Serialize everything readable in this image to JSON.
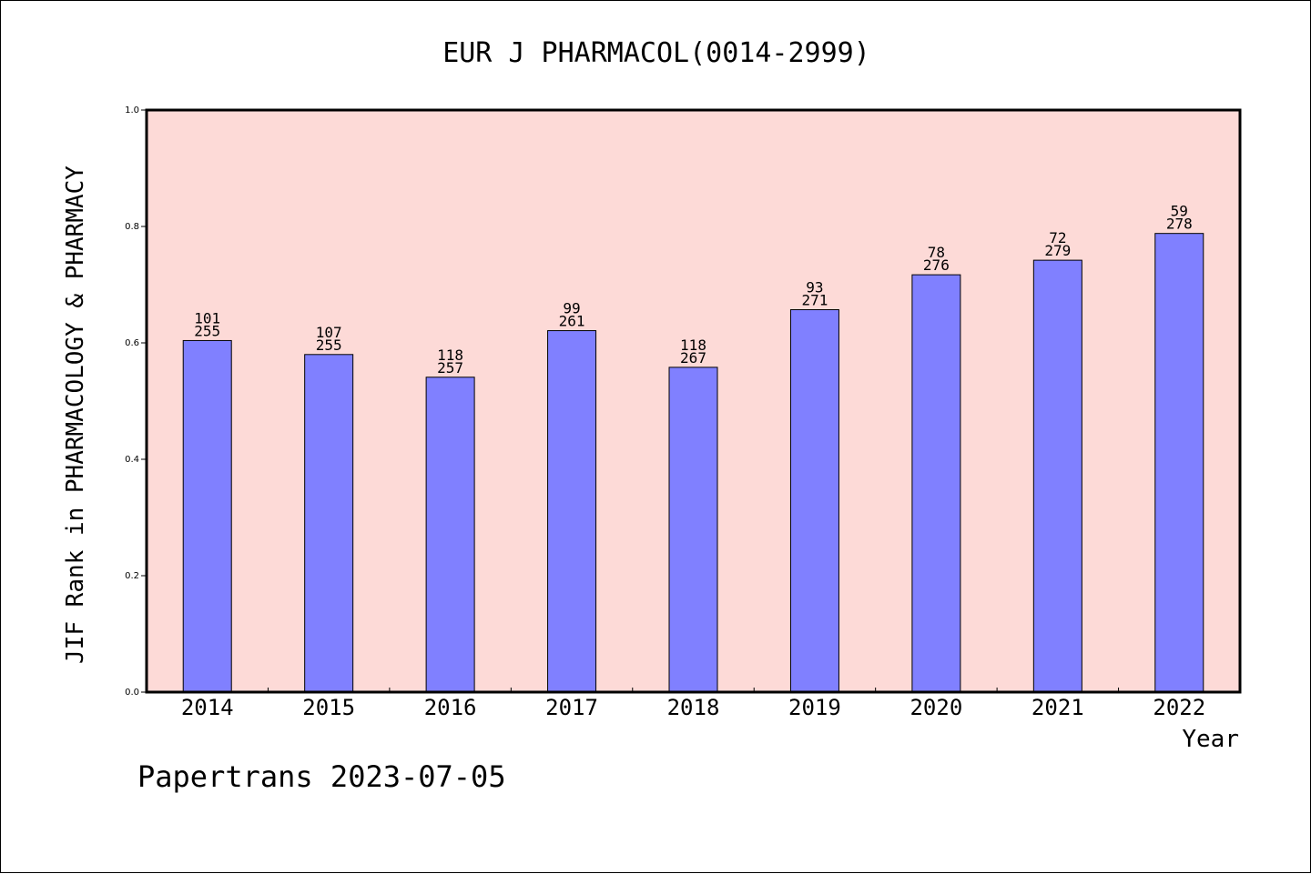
{
  "chart_data": {
    "type": "bar",
    "title": "EUR J PHARMACOL(0014-2999)",
    "xlabel": "Year",
    "ylabel": "JIF Rank in PHARMACOLOGY & PHARMACY",
    "ylim": [
      0.0,
      1.0
    ],
    "yticks": [
      "0.0",
      "0.2",
      "0.4",
      "0.6",
      "0.8",
      "1.0"
    ],
    "categories": [
      "2014",
      "2015",
      "2016",
      "2017",
      "2018",
      "2019",
      "2020",
      "2021",
      "2022"
    ],
    "values": [
      0.604,
      0.58,
      0.541,
      0.621,
      0.558,
      0.657,
      0.717,
      0.742,
      0.788
    ],
    "rank_labels": [
      "101",
      "107",
      "118",
      "99",
      "118",
      "93",
      "78",
      "72",
      "59"
    ],
    "total_labels": [
      "255",
      "255",
      "257",
      "261",
      "267",
      "271",
      "276",
      "279",
      "278"
    ],
    "grid": false,
    "plot_background": "#fddad7",
    "bar_color": "#8080ff",
    "footer": "Papertrans 2023-07-05"
  }
}
